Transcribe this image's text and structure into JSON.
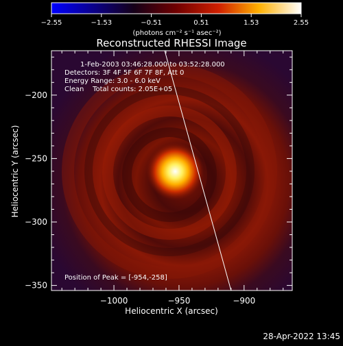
{
  "chart_data": {
    "type": "heatmap",
    "title": "Reconstructed RHESSI Image",
    "xlabel": "Heliocentric X (arcsec)",
    "ylabel": "Heliocentric Y (arcsec)",
    "xlim": [
      -1048,
      -863
    ],
    "ylim": [
      -354,
      -165
    ],
    "x_ticks": [
      -1000,
      -950,
      -900
    ],
    "x_tick_labels": [
      "−1000",
      "−950",
      "−900"
    ],
    "y_ticks": [
      -200,
      -250,
      -300,
      -350
    ],
    "y_tick_labels": [
      "−200",
      "−250",
      "−300",
      "−350"
    ],
    "colorbar": {
      "ticks": [
        -2.55,
        -1.53,
        -0.51,
        0.51,
        1.53,
        2.55
      ],
      "tick_labels": [
        "−2.55",
        "−1.53",
        "−0.51",
        "0.51",
        "1.53",
        "2.55"
      ],
      "range": [
        -2.55,
        2.55
      ],
      "unit_label": "(photons cm⁻² s⁻¹ asec⁻²)",
      "colormap": [
        "#0000ff",
        "#200020",
        "#800000",
        "#ff4000",
        "#ffd000",
        "#ffffff"
      ]
    },
    "annotations": {
      "time_range": "1-Feb-2003 03:46:28.000 to 03:52:28.000",
      "detectors": "Detectors: 3F 4F 5F 6F 7F 8F, Att 0",
      "energy": "Energy Range: 3.0 - 6.0 keV",
      "method": "Clean    Total counts: 2.05E+05",
      "peak": "Position of Peak = [-954,-258]"
    },
    "peak": {
      "x": -954,
      "y": -258
    },
    "limb_line": [
      [
        -961,
        -165
      ],
      [
        -910,
        -354
      ]
    ]
  },
  "footer": {
    "timestamp": "28-Apr-2022 13:45"
  }
}
